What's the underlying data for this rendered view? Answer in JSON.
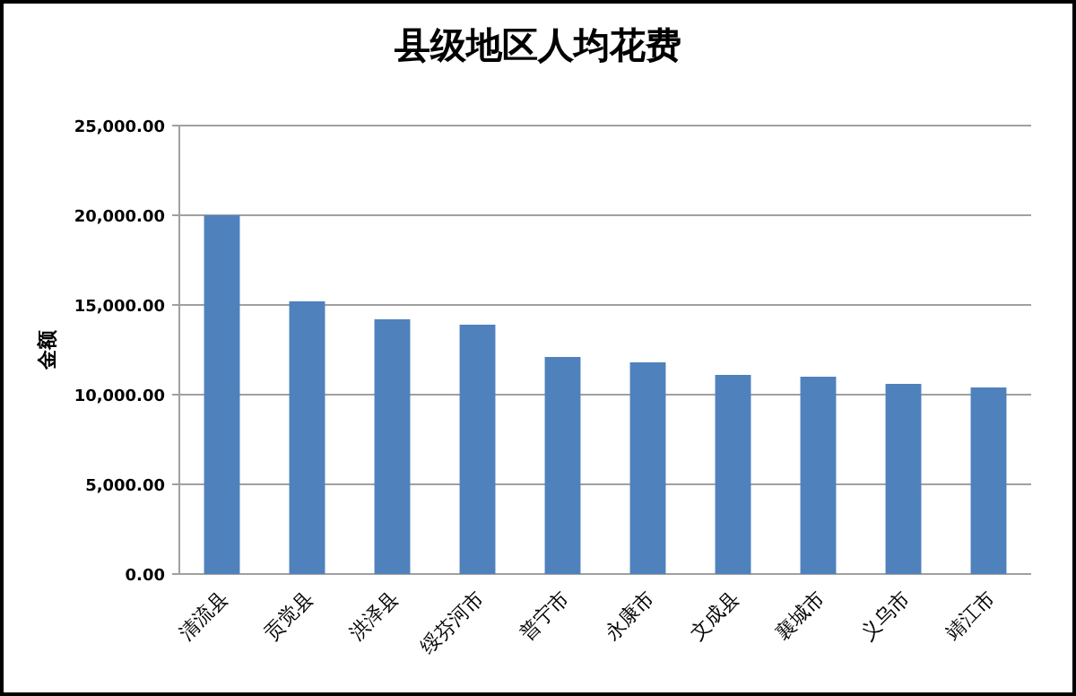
{
  "chart_data": {
    "type": "bar",
    "title": "县级地区人均花费",
    "ylabel": "金额",
    "categories": [
      "清流县",
      "贡觉县",
      "洪泽县",
      "绥芬河市",
      "普宁市",
      "永康市",
      "文成县",
      "襄城市",
      "义乌市",
      "靖江市"
    ],
    "values": [
      20000,
      15200,
      14200,
      13900,
      12100,
      11800,
      11100,
      11000,
      10600,
      10400
    ],
    "color": "#4f81bd",
    "ylim": [
      0,
      25000
    ],
    "yticks": [
      {
        "value": 0,
        "label": "0.00"
      },
      {
        "value": 5000,
        "label": "5,000.00"
      },
      {
        "value": 10000,
        "label": "10,000.00"
      },
      {
        "value": 15000,
        "label": "15,000.00"
      },
      {
        "value": 20000,
        "label": "20,000.00"
      },
      {
        "value": 25000,
        "label": "25,000.00"
      }
    ],
    "grid": "y"
  }
}
